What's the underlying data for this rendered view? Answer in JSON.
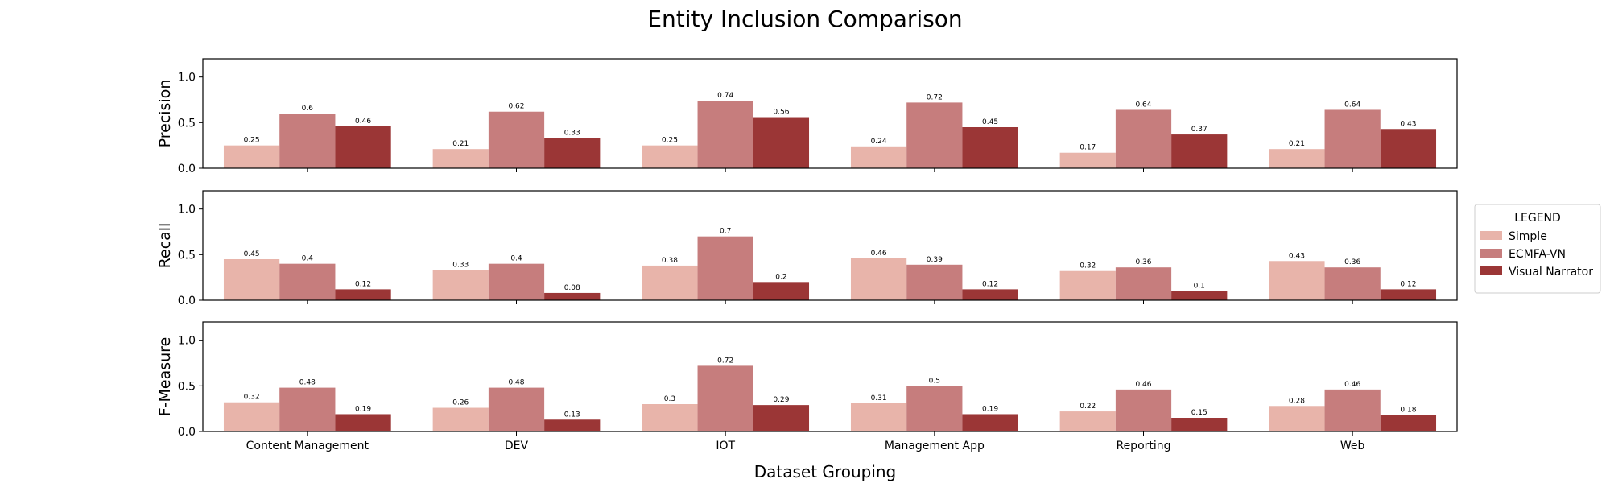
{
  "chart_data": {
    "type": "bar",
    "title": "Entity Inclusion Comparison",
    "xlabel": "Dataset Grouping",
    "categories": [
      "Content Management",
      "DEV",
      "IOT",
      "Management App",
      "Reporting",
      "Web"
    ],
    "ylim": [
      0,
      1.2
    ],
    "yticks": [
      "0.0",
      "0.5",
      "1.0"
    ],
    "legend": {
      "title": "LEGEND",
      "placement": "right",
      "entries": [
        "Simple",
        "ECMFA-VN",
        "Visual Narrator"
      ]
    },
    "colors": {
      "Simple": "#e8b4aa",
      "ECMFA-VN": "#c67d7d",
      "Visual Narrator": "#9b3636"
    },
    "panels": [
      {
        "ylabel": "Precision",
        "series": [
          {
            "name": "Simple",
            "values": [
              0.25,
              0.21,
              0.25,
              0.24,
              0.17,
              0.21
            ]
          },
          {
            "name": "ECMFA-VN",
            "values": [
              0.6,
              0.62,
              0.74,
              0.72,
              0.64,
              0.64
            ]
          },
          {
            "name": "Visual Narrator",
            "values": [
              0.46,
              0.33,
              0.56,
              0.45,
              0.37,
              0.43
            ]
          }
        ]
      },
      {
        "ylabel": "Recall",
        "series": [
          {
            "name": "Simple",
            "values": [
              0.45,
              0.33,
              0.38,
              0.46,
              0.32,
              0.43
            ]
          },
          {
            "name": "ECMFA-VN",
            "values": [
              0.4,
              0.4,
              0.7,
              0.39,
              0.36,
              0.36
            ]
          },
          {
            "name": "Visual Narrator",
            "values": [
              0.12,
              0.08,
              0.2,
              0.12,
              0.1,
              0.12
            ]
          }
        ]
      },
      {
        "ylabel": "F-Measure",
        "series": [
          {
            "name": "Simple",
            "values": [
              0.32,
              0.26,
              0.3,
              0.31,
              0.22,
              0.28
            ]
          },
          {
            "name": "ECMFA-VN",
            "values": [
              0.48,
              0.48,
              0.72,
              0.5,
              0.46,
              0.46
            ]
          },
          {
            "name": "Visual Narrator",
            "values": [
              0.19,
              0.13,
              0.29,
              0.19,
              0.15,
              0.18
            ]
          }
        ]
      }
    ]
  }
}
